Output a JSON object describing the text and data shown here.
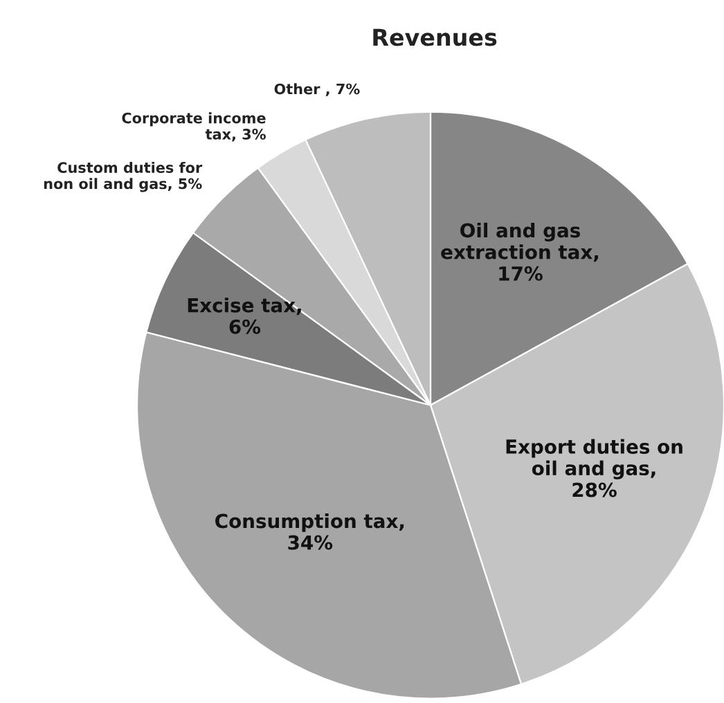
{
  "chart_data": {
    "type": "pie",
    "title": "Revenues",
    "categories": [
      "Oil and gas\nextraction tax",
      "Export duties on\noil and gas",
      "Consumption tax",
      "Excise tax",
      "Custom duties for\nnon oil and gas",
      "Corporate income\ntax",
      "Other"
    ],
    "values": [
      17,
      28,
      34,
      6,
      5,
      3,
      7
    ],
    "value_labels": [
      ", 17%",
      ", 28%",
      ", 34%",
      ", 6%",
      ", 5%",
      ", 3%",
      " , 7%"
    ],
    "colors": [
      "#868686",
      "#c4c4c4",
      "#a6a6a6",
      "#7c7c7c",
      "#a9a9a9",
      "#d9d9d9",
      "#bdbdbd"
    ]
  }
}
